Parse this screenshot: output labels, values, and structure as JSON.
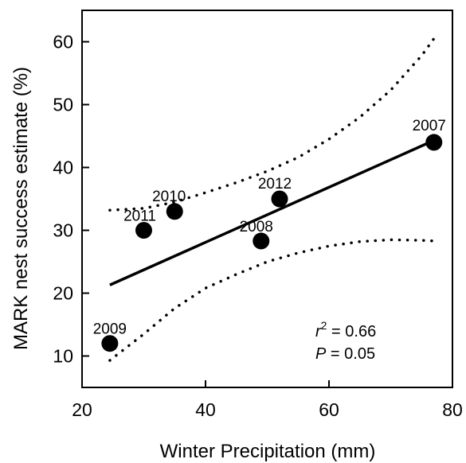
{
  "chart_data": {
    "type": "scatter",
    "title": "",
    "xlabel": "Winter Precipitation (mm)",
    "ylabel": "MARK nest success estimate (%)",
    "xlim": [
      20,
      80
    ],
    "ylim": [
      5,
      65
    ],
    "xticks": [
      20,
      40,
      60,
      80
    ],
    "yticks": [
      10,
      20,
      30,
      40,
      50,
      60
    ],
    "grid": false,
    "points": [
      {
        "label": "2009",
        "x": 24.5,
        "y": 12.0
      },
      {
        "label": "2011",
        "x": 30.0,
        "y": 30.0
      },
      {
        "label": "2010",
        "x": 35.0,
        "y": 33.0
      },
      {
        "label": "2008",
        "x": 49.0,
        "y": 28.3
      },
      {
        "label": "2012",
        "x": 52.0,
        "y": 35.0
      },
      {
        "label": "2007",
        "x": 77.0,
        "y": 44.0
      }
    ],
    "regression_line": {
      "x": [
        24.5,
        77.0
      ],
      "y": [
        21.3,
        44.3
      ]
    },
    "confidence_band_upper": {
      "x": [
        24.5,
        30,
        35,
        40,
        45,
        50,
        55,
        60,
        65,
        70,
        75,
        77
      ],
      "y": [
        33.2,
        33.5,
        34.5,
        36.0,
        37.6,
        39.4,
        41.6,
        44.5,
        48.0,
        52.3,
        57.8,
        60.5
      ]
    },
    "confidence_band_lower": {
      "x": [
        24.5,
        30,
        35,
        40,
        45,
        50,
        55,
        60,
        65,
        70,
        75,
        77
      ],
      "y": [
        9.3,
        13.5,
        17.6,
        20.8,
        23.0,
        25.0,
        26.4,
        27.5,
        28.2,
        28.5,
        28.4,
        28.3
      ]
    },
    "annotations": {
      "r2_symbol": "r",
      "r2_superscript": "2",
      "r2_value": " = 0.66",
      "p_symbol": "P",
      "p_value": " = 0.05"
    }
  }
}
